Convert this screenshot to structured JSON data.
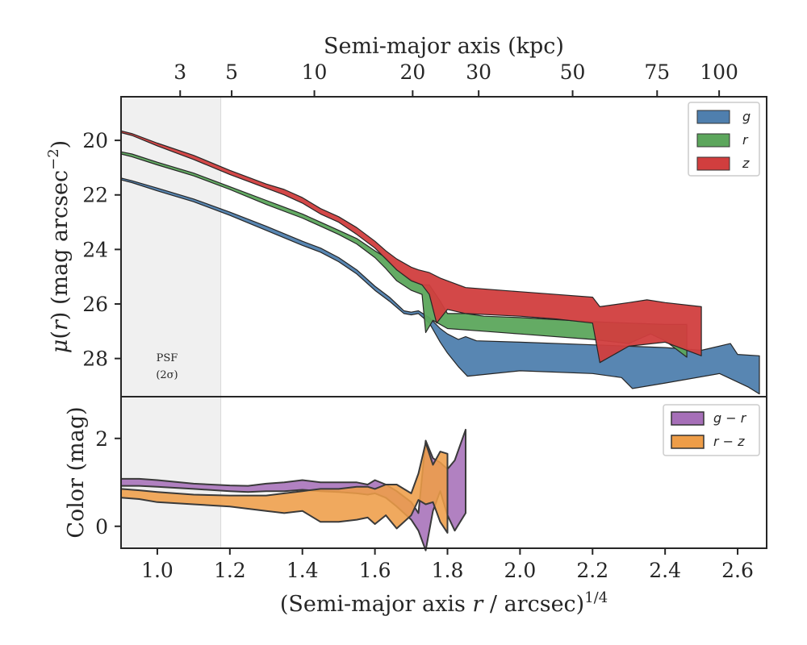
{
  "chart_data": [
    {
      "type": "area",
      "panel": "surface-brightness",
      "xlabel": "(Semi-major axis r / arcsec)^1/4",
      "xlabel_parts": {
        "pre": "(Semi-major axis ",
        "var": "r",
        "mid": " / arcsec)",
        "sup": "1/4"
      },
      "ylabel": "μ(r) (mag arcsec^-2)",
      "ylabel_parts": {
        "mu": "μ",
        "open": "(",
        "var": "r",
        "close": ")",
        "unit": " (mag arcsec",
        "sup": "−2",
        "end": ")"
      },
      "top_axis_label": "Semi-major axis (kpc)",
      "top_ticks": [
        {
          "label": "3",
          "x": 1.063
        },
        {
          "label": "5",
          "x": 1.205
        },
        {
          "label": "10",
          "x": 1.433
        },
        {
          "label": "20",
          "x": 1.704
        },
        {
          "label": "30",
          "x": 1.886
        },
        {
          "label": "50",
          "x": 2.145
        },
        {
          "label": "75",
          "x": 2.378
        },
        {
          "label": "100",
          "x": 2.549
        }
      ],
      "xlim": [
        0.9,
        2.68
      ],
      "ylim": [
        29.4,
        18.4
      ],
      "y_inverted": true,
      "y_ticks": [
        "20",
        "22",
        "24",
        "26",
        "28"
      ],
      "x_ticks": [
        "1.0",
        "1.2",
        "1.4",
        "1.6",
        "1.8",
        "2.0",
        "2.2",
        "2.4",
        "2.6"
      ],
      "grid": false,
      "legend_position": "top-right",
      "psf_label": [
        "PSF",
        "(2σ)"
      ],
      "psf_region_x": [
        0.9,
        1.175
      ],
      "series": [
        {
          "name": "g",
          "color": "#4f7fae",
          "upper": [
            [
              0.9,
              21.38
            ],
            [
              0.93,
              21.48
            ],
            [
              1.0,
              21.75
            ],
            [
              1.1,
              22.15
            ],
            [
              1.2,
              22.63
            ],
            [
              1.3,
              23.15
            ],
            [
              1.4,
              23.7
            ],
            [
              1.45,
              23.95
            ],
            [
              1.5,
              24.3
            ],
            [
              1.55,
              24.75
            ],
            [
              1.6,
              25.35
            ],
            [
              1.64,
              25.75
            ],
            [
              1.68,
              26.25
            ],
            [
              1.7,
              26.3
            ],
            [
              1.72,
              26.25
            ],
            [
              1.75,
              26.5
            ],
            [
              1.78,
              26.9
            ],
            [
              1.8,
              27.1
            ],
            [
              1.83,
              27.3
            ],
            [
              1.85,
              27.2
            ],
            [
              1.88,
              27.35
            ],
            [
              2.0,
              27.4
            ],
            [
              2.2,
              27.5
            ],
            [
              2.4,
              27.6
            ],
            [
              2.5,
              27.7
            ],
            [
              2.58,
              27.45
            ],
            [
              2.6,
              27.85
            ],
            [
              2.66,
              27.9
            ]
          ],
          "lower": [
            [
              0.9,
              21.45
            ],
            [
              0.93,
              21.55
            ],
            [
              1.0,
              21.85
            ],
            [
              1.1,
              22.25
            ],
            [
              1.2,
              22.75
            ],
            [
              1.3,
              23.3
            ],
            [
              1.4,
              23.85
            ],
            [
              1.45,
              24.1
            ],
            [
              1.5,
              24.45
            ],
            [
              1.55,
              24.9
            ],
            [
              1.6,
              25.5
            ],
            [
              1.64,
              25.9
            ],
            [
              1.68,
              26.35
            ],
            [
              1.7,
              26.4
            ],
            [
              1.72,
              26.35
            ],
            [
              1.75,
              26.7
            ],
            [
              1.78,
              27.4
            ],
            [
              1.8,
              27.8
            ],
            [
              1.83,
              28.3
            ],
            [
              1.855,
              28.65
            ],
            [
              2.0,
              28.45
            ],
            [
              2.2,
              28.55
            ],
            [
              2.28,
              28.7
            ],
            [
              2.31,
              29.1
            ],
            [
              2.4,
              28.9
            ],
            [
              2.55,
              28.55
            ],
            [
              2.63,
              29.05
            ],
            [
              2.66,
              29.3
            ]
          ]
        },
        {
          "name": "r",
          "color": "#5ca65c",
          "upper": [
            [
              0.9,
              20.42
            ],
            [
              0.93,
              20.5
            ],
            [
              1.0,
              20.8
            ],
            [
              1.1,
              21.2
            ],
            [
              1.2,
              21.7
            ],
            [
              1.3,
              22.2
            ],
            [
              1.4,
              22.7
            ],
            [
              1.45,
              23.0
            ],
            [
              1.5,
              23.3
            ],
            [
              1.55,
              23.6
            ],
            [
              1.6,
              24.05
            ],
            [
              1.63,
              24.3
            ],
            [
              1.66,
              24.75
            ],
            [
              1.7,
              25.1
            ],
            [
              1.73,
              25.3
            ],
            [
              1.75,
              25.3
            ],
            [
              1.78,
              25.9
            ],
            [
              1.8,
              26.35
            ],
            [
              1.85,
              26.35
            ],
            [
              1.9,
              26.45
            ],
            [
              2.0,
              26.5
            ],
            [
              2.2,
              26.65
            ],
            [
              2.4,
              26.75
            ],
            [
              2.46,
              26.75
            ]
          ],
          "lower": [
            [
              0.9,
              20.5
            ],
            [
              0.93,
              20.6
            ],
            [
              1.0,
              20.9
            ],
            [
              1.1,
              21.3
            ],
            [
              1.2,
              21.8
            ],
            [
              1.3,
              22.35
            ],
            [
              1.4,
              22.85
            ],
            [
              1.45,
              23.15
            ],
            [
              1.5,
              23.45
            ],
            [
              1.55,
              23.8
            ],
            [
              1.6,
              24.3
            ],
            [
              1.63,
              24.7
            ],
            [
              1.66,
              25.15
            ],
            [
              1.7,
              25.5
            ],
            [
              1.73,
              25.65
            ],
            [
              1.74,
              27.05
            ],
            [
              1.76,
              26.6
            ],
            [
              1.8,
              26.9
            ],
            [
              1.9,
              27.0
            ],
            [
              2.0,
              27.1
            ],
            [
              2.2,
              27.3
            ],
            [
              2.3,
              27.45
            ],
            [
              2.36,
              27.1
            ],
            [
              2.4,
              27.35
            ],
            [
              2.46,
              27.95
            ]
          ]
        },
        {
          "name": "z",
          "color": "#d13e3e",
          "upper": [
            [
              0.9,
              19.65
            ],
            [
              0.93,
              19.75
            ],
            [
              1.0,
              20.1
            ],
            [
              1.1,
              20.55
            ],
            [
              1.2,
              21.1
            ],
            [
              1.3,
              21.6
            ],
            [
              1.35,
              21.8
            ],
            [
              1.4,
              22.1
            ],
            [
              1.45,
              22.5
            ],
            [
              1.5,
              22.8
            ],
            [
              1.55,
              23.2
            ],
            [
              1.6,
              23.7
            ],
            [
              1.63,
              24.05
            ],
            [
              1.66,
              24.35
            ],
            [
              1.7,
              24.65
            ],
            [
              1.72,
              24.75
            ],
            [
              1.75,
              24.85
            ],
            [
              1.78,
              25.05
            ],
            [
              1.8,
              25.15
            ],
            [
              1.85,
              25.4
            ],
            [
              2.0,
              25.55
            ],
            [
              2.1,
              25.65
            ],
            [
              2.2,
              25.75
            ],
            [
              2.22,
              26.1
            ],
            [
              2.3,
              25.95
            ],
            [
              2.35,
              25.85
            ],
            [
              2.4,
              25.95
            ],
            [
              2.5,
              26.1
            ]
          ],
          "lower": [
            [
              0.9,
              19.72
            ],
            [
              0.93,
              19.82
            ],
            [
              1.0,
              20.2
            ],
            [
              1.1,
              20.7
            ],
            [
              1.2,
              21.25
            ],
            [
              1.3,
              21.75
            ],
            [
              1.35,
              22.0
            ],
            [
              1.4,
              22.3
            ],
            [
              1.45,
              22.7
            ],
            [
              1.5,
              23.0
            ],
            [
              1.55,
              23.45
            ],
            [
              1.6,
              23.95
            ],
            [
              1.63,
              24.35
            ],
            [
              1.66,
              24.75
            ],
            [
              1.7,
              25.15
            ],
            [
              1.73,
              25.3
            ],
            [
              1.75,
              25.65
            ],
            [
              1.77,
              26.7
            ],
            [
              1.8,
              26.2
            ],
            [
              1.85,
              26.35
            ],
            [
              2.0,
              26.45
            ],
            [
              2.1,
              26.55
            ],
            [
              2.2,
              26.7
            ],
            [
              2.22,
              28.15
            ],
            [
              2.3,
              27.55
            ],
            [
              2.4,
              27.4
            ],
            [
              2.5,
              27.9
            ]
          ]
        }
      ]
    },
    {
      "type": "area",
      "panel": "color",
      "xlabel": "",
      "ylabel": "Color (mag)",
      "xlim": [
        0.9,
        2.68
      ],
      "ylim": [
        -0.5,
        2.95
      ],
      "y_ticks": [
        "0",
        "2"
      ],
      "grid": false,
      "legend_position": "top-right",
      "series": [
        {
          "name": "g − r",
          "color": "#a66fb8",
          "upper": [
            [
              0.9,
              1.08
            ],
            [
              0.95,
              1.08
            ],
            [
              1.0,
              1.05
            ],
            [
              1.1,
              0.97
            ],
            [
              1.2,
              0.93
            ],
            [
              1.25,
              0.92
            ],
            [
              1.3,
              0.97
            ],
            [
              1.35,
              1.0
            ],
            [
              1.4,
              1.05
            ],
            [
              1.45,
              1.0
            ],
            [
              1.5,
              1.0
            ],
            [
              1.55,
              1.0
            ],
            [
              1.58,
              0.95
            ],
            [
              1.6,
              1.05
            ],
            [
              1.63,
              0.95
            ],
            [
              1.66,
              0.8
            ],
            [
              1.7,
              0.55
            ],
            [
              1.72,
              0.3
            ],
            [
              1.74,
              1.95
            ],
            [
              1.76,
              1.55
            ],
            [
              1.78,
              1.45
            ],
            [
              1.8,
              1.3
            ],
            [
              1.82,
              1.5
            ],
            [
              1.85,
              2.2
            ]
          ],
          "lower": [
            [
              0.9,
              0.92
            ],
            [
              0.95,
              0.92
            ],
            [
              1.0,
              0.9
            ],
            [
              1.1,
              0.85
            ],
            [
              1.2,
              0.8
            ],
            [
              1.25,
              0.78
            ],
            [
              1.3,
              0.8
            ],
            [
              1.35,
              0.8
            ],
            [
              1.4,
              0.83
            ],
            [
              1.45,
              0.8
            ],
            [
              1.5,
              0.78
            ],
            [
              1.55,
              0.75
            ],
            [
              1.58,
              0.72
            ],
            [
              1.6,
              0.75
            ],
            [
              1.63,
              0.65
            ],
            [
              1.66,
              0.45
            ],
            [
              1.7,
              0.15
            ],
            [
              1.72,
              -0.1
            ],
            [
              1.74,
              -0.55
            ],
            [
              1.76,
              0.35
            ],
            [
              1.78,
              0.8
            ],
            [
              1.8,
              0.25
            ],
            [
              1.82,
              -0.1
            ],
            [
              1.85,
              0.3
            ]
          ]
        },
        {
          "name": "r − z",
          "color": "#ee9d48",
          "upper": [
            [
              0.9,
              0.85
            ],
            [
              0.95,
              0.82
            ],
            [
              1.0,
              0.78
            ],
            [
              1.1,
              0.72
            ],
            [
              1.2,
              0.7
            ],
            [
              1.3,
              0.7
            ],
            [
              1.35,
              0.75
            ],
            [
              1.4,
              0.8
            ],
            [
              1.45,
              0.85
            ],
            [
              1.5,
              0.85
            ],
            [
              1.55,
              0.9
            ],
            [
              1.58,
              0.9
            ],
            [
              1.6,
              0.85
            ],
            [
              1.63,
              0.95
            ],
            [
              1.66,
              0.95
            ],
            [
              1.7,
              0.75
            ],
            [
              1.72,
              1.2
            ],
            [
              1.74,
              1.9
            ],
            [
              1.76,
              1.4
            ],
            [
              1.78,
              1.7
            ],
            [
              1.8,
              1.65
            ]
          ],
          "lower": [
            [
              0.9,
              0.65
            ],
            [
              0.95,
              0.62
            ],
            [
              1.0,
              0.55
            ],
            [
              1.1,
              0.5
            ],
            [
              1.2,
              0.45
            ],
            [
              1.3,
              0.35
            ],
            [
              1.35,
              0.3
            ],
            [
              1.4,
              0.35
            ],
            [
              1.45,
              0.1
            ],
            [
              1.5,
              0.1
            ],
            [
              1.55,
              0.15
            ],
            [
              1.58,
              0.2
            ],
            [
              1.6,
              0.05
            ],
            [
              1.63,
              0.25
            ],
            [
              1.66,
              -0.05
            ],
            [
              1.7,
              0.25
            ],
            [
              1.72,
              0.6
            ],
            [
              1.74,
              0.5
            ],
            [
              1.76,
              0.55
            ],
            [
              1.78,
              0.1
            ],
            [
              1.8,
              -0.15
            ]
          ]
        }
      ]
    }
  ]
}
